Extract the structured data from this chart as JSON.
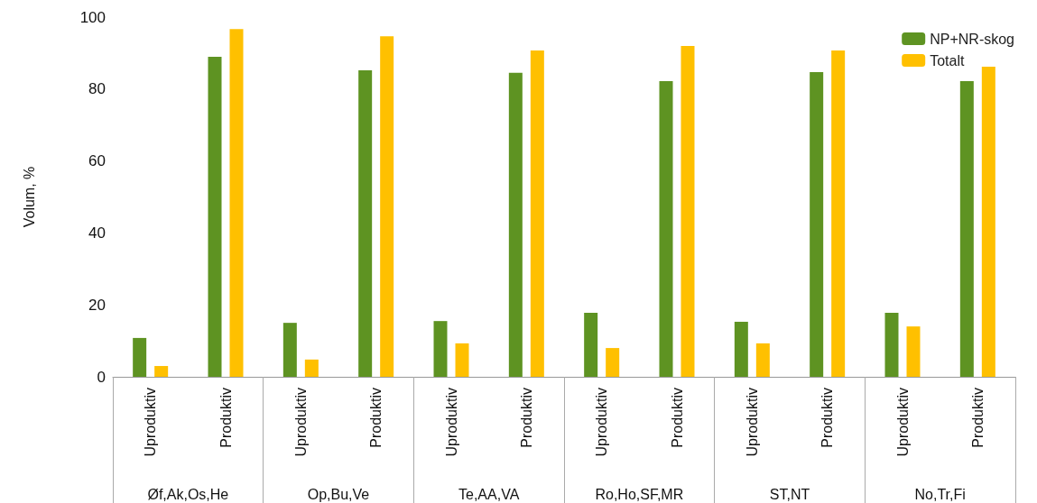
{
  "chart_data": {
    "type": "bar",
    "ylabel": "Volum, %",
    "categories": [
      "Uproduktiv",
      "Produktiv",
      "Uproduktiv",
      "Produktiv",
      "Uproduktiv",
      "Produktiv",
      "Uproduktiv",
      "Produktiv",
      "Uproduktiv",
      "Produktiv",
      "Uproduktiv",
      "Produktiv"
    ],
    "series": [
      {
        "name": "NP+NR-skog",
        "color": "#5e9322",
        "values": [
          10.8,
          89,
          15,
          85.2,
          15.5,
          84.5,
          17.8,
          82.2,
          15.3,
          84.7,
          17.8,
          82.2
        ]
      },
      {
        "name": "Totalt",
        "color": "#ffc000",
        "values": [
          3,
          96.7,
          4.8,
          94.7,
          9.3,
          90.7,
          8,
          92,
          9.3,
          90.7,
          14,
          86.2
        ]
      }
    ],
    "annotations": [
      "Øf,Ak,Os,He",
      "Op,Bu,Ve",
      "Te,AA,VA",
      "Ro,Ho,SF,MR",
      "ST,NT",
      "No,Tr,Fi"
    ],
    "ylim": [
      0,
      100
    ],
    "yticks": [
      0,
      20,
      40,
      60,
      80,
      100
    ],
    "grid": false,
    "legend": "top right"
  }
}
